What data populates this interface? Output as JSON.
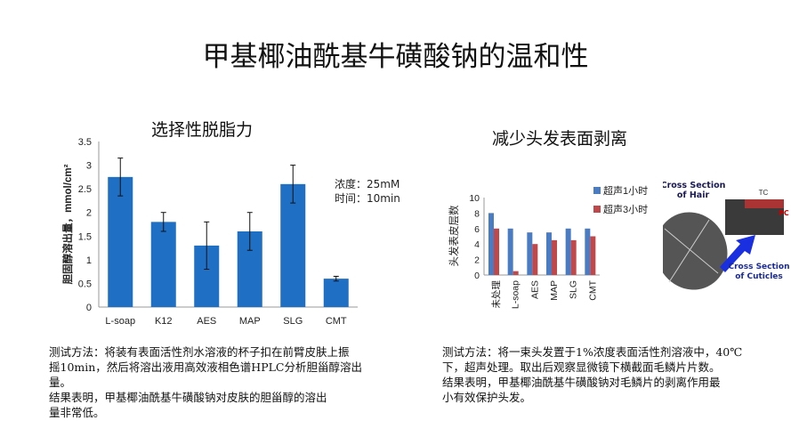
{
  "title": "甲基椰油酰基牛磺酸钠的温和性",
  "left": {
    "subtitle": "选择性脱脂力",
    "note_lines": [
      "浓度：25mM",
      "时间：10min"
    ],
    "paragraph_lines": [
      "测试方法：将装有表面活性剂水溶液的杯子扣在前臂皮肤上振",
      "摇10min，然后将溶出液用高效液相色谱HPLC分析胆甾醇溶出",
      "量。",
      "结果表明，甲基椰油酰基牛磺酸钠对皮肤的胆甾醇的溶出",
      "量非常低。"
    ]
  },
  "right": {
    "subtitle": "减少头发表面剥离",
    "figure_labels": {
      "hair": [
        "Cross Section",
        "of Hair"
      ],
      "cuticles": [
        "Cross Section",
        "of Cuticles"
      ],
      "tc": "TC",
      "pc": "PC"
    },
    "paragraph_lines": [
      "测试方法：将一束头发置于1%浓度表面活性剂溶液中，40℃",
      "下，超声处理。取出后观察显微镜下横截面毛鳞片片数。",
      "结果表明，甲基椰油酰基牛磺酸钠对毛鳞片的剥离作用最",
      "小有效保护头发。"
    ]
  },
  "chart_data": [
    {
      "type": "bar",
      "title": "选择性脱脂力",
      "ylabel": "胆固醇溶出量，mmol/cm²",
      "xlabel": "",
      "categories": [
        "L-soap",
        "K12",
        "AES",
        "MAP",
        "SLG",
        "CMT"
      ],
      "values": [
        2.75,
        1.8,
        1.3,
        1.6,
        2.6,
        0.6
      ],
      "error": [
        0.4,
        0.2,
        0.5,
        0.4,
        0.4,
        0.05
      ],
      "ylim": [
        0,
        3.5
      ],
      "yticks": [
        "0",
        "0.5",
        "1",
        "1.5",
        "2",
        "2.5",
        "3",
        "3.5"
      ],
      "color": "#1f6fc4",
      "grid": false
    },
    {
      "type": "bar",
      "title": "减少头发表面剥离",
      "ylabel": "头发表皮层数",
      "categories": [
        "未处理",
        "L-soap",
        "AES",
        "MAP",
        "SLG",
        "CMT"
      ],
      "series": [
        {
          "name": "超声1小时",
          "values": [
            8,
            6,
            5.5,
            5.5,
            6,
            6
          ],
          "color": "#4a7cc4"
        },
        {
          "name": "超声3小时",
          "values": [
            6,
            0.5,
            4,
            4.5,
            4.5,
            5
          ],
          "color": "#c0474a"
        }
      ],
      "ylim": [
        0,
        10
      ],
      "yticks": [
        "0",
        "2",
        "4",
        "6",
        "8",
        "10"
      ],
      "legend": "top-right",
      "grid": false
    }
  ]
}
